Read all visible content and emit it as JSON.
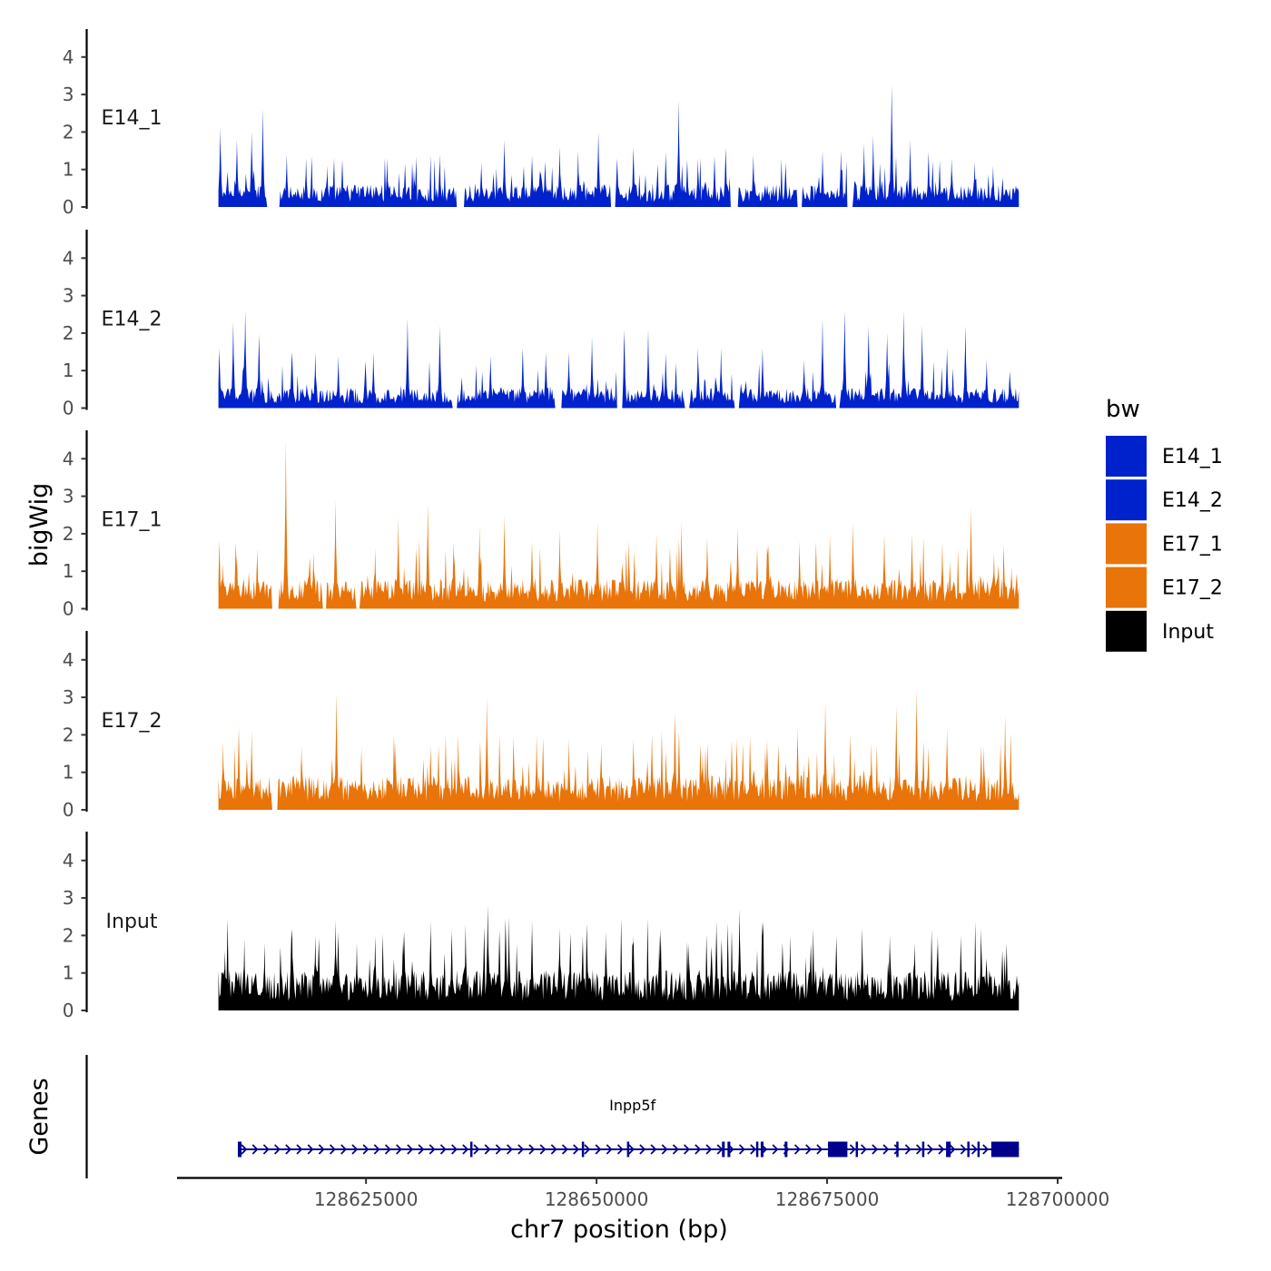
{
  "chart_data": {
    "type": "area",
    "title": "",
    "xlabel": "chr7 position (bp)",
    "ylabel": "bigWig",
    "genes_label": "Genes",
    "xlim": [
      128605000,
      128700000
    ],
    "ylim": [
      0,
      4.7
    ],
    "x_ticks": [
      128625000,
      128650000,
      128675000,
      128700000
    ],
    "x_tick_labels": [
      "128625000",
      "128650000",
      "128675000",
      "128700000"
    ],
    "y_ticks": [
      0,
      1,
      2,
      3,
      4
    ],
    "y_tick_labels": [
      "0",
      "1",
      "2",
      "3",
      "4"
    ],
    "legend": {
      "title": "bw",
      "position": "right",
      "entries": [
        {
          "label": "E14_1",
          "color": "#0022CC"
        },
        {
          "label": "E14_2",
          "color": "#0022CC"
        },
        {
          "label": "E17_1",
          "color": "#E8740A"
        },
        {
          "label": "E17_2",
          "color": "#E8740A"
        },
        {
          "label": "Input",
          "color": "#000000"
        }
      ]
    },
    "region": {
      "chrom": "chr7",
      "start": 128609000,
      "end": 128695800
    },
    "series": [
      {
        "name": "E14_1",
        "color": "#0022CC",
        "baseline_level": 0.55,
        "gaps": [
          [
            128614200,
            128615600
          ],
          [
            128634800,
            128635700
          ],
          [
            128651500,
            128652100
          ],
          [
            128664500,
            128665400
          ],
          [
            128671800,
            128672300
          ],
          [
            128677200,
            128677800
          ]
        ],
        "peaks": [
          {
            "x": 128609200,
            "y": 2.1
          },
          {
            "x": 128611000,
            "y": 1.8
          },
          {
            "x": 128612600,
            "y": 2.0
          },
          {
            "x": 128613800,
            "y": 2.6
          },
          {
            "x": 128616400,
            "y": 1.4
          },
          {
            "x": 128618500,
            "y": 1.3
          },
          {
            "x": 128620800,
            "y": 1.1
          },
          {
            "x": 128627300,
            "y": 1.3
          },
          {
            "x": 128630200,
            "y": 1.0
          },
          {
            "x": 128633000,
            "y": 1.4
          },
          {
            "x": 128637500,
            "y": 1.2
          },
          {
            "x": 128640000,
            "y": 1.8
          },
          {
            "x": 128643000,
            "y": 1.4
          },
          {
            "x": 128646000,
            "y": 1.6
          },
          {
            "x": 128648000,
            "y": 1.5
          },
          {
            "x": 128650200,
            "y": 2.0
          },
          {
            "x": 128654000,
            "y": 1.6
          },
          {
            "x": 128657500,
            "y": 1.5
          },
          {
            "x": 128658900,
            "y": 2.85
          },
          {
            "x": 128661000,
            "y": 1.3
          },
          {
            "x": 128664000,
            "y": 1.6
          },
          {
            "x": 128667000,
            "y": 1.4
          },
          {
            "x": 128670500,
            "y": 1.2
          },
          {
            "x": 128674500,
            "y": 1.5
          },
          {
            "x": 128676500,
            "y": 1.5
          },
          {
            "x": 128679000,
            "y": 1.7
          },
          {
            "x": 128680000,
            "y": 1.9
          },
          {
            "x": 128682000,
            "y": 3.25
          },
          {
            "x": 128684000,
            "y": 1.8
          },
          {
            "x": 128686000,
            "y": 1.5
          },
          {
            "x": 128688500,
            "y": 1.3
          },
          {
            "x": 128691000,
            "y": 1.2
          },
          {
            "x": 128693000,
            "y": 1.1
          }
        ]
      },
      {
        "name": "E14_2",
        "color": "#0022CC",
        "baseline_level": 0.5,
        "gaps": [
          [
            128634400,
            128634900
          ],
          [
            128645500,
            128646200
          ],
          [
            128652200,
            128652800
          ],
          [
            128659600,
            128660100
          ],
          [
            128664900,
            128665500
          ],
          [
            128675900,
            128676400
          ]
        ],
        "peaks": [
          {
            "x": 128609100,
            "y": 1.6
          },
          {
            "x": 128610600,
            "y": 2.3
          },
          {
            "x": 128611900,
            "y": 2.6
          },
          {
            "x": 128613400,
            "y": 2.0
          },
          {
            "x": 128617000,
            "y": 1.5
          },
          {
            "x": 128619500,
            "y": 1.5
          },
          {
            "x": 128622000,
            "y": 1.4
          },
          {
            "x": 128625800,
            "y": 1.5
          },
          {
            "x": 128629500,
            "y": 2.4
          },
          {
            "x": 128633000,
            "y": 2.2
          },
          {
            "x": 128638500,
            "y": 1.4
          },
          {
            "x": 128642000,
            "y": 1.6
          },
          {
            "x": 128644500,
            "y": 1.5
          },
          {
            "x": 128647000,
            "y": 1.5
          },
          {
            "x": 128649500,
            "y": 1.9
          },
          {
            "x": 128653000,
            "y": 2.1
          },
          {
            "x": 128655600,
            "y": 2.1
          },
          {
            "x": 128657500,
            "y": 1.5
          },
          {
            "x": 128661000,
            "y": 1.6
          },
          {
            "x": 128663500,
            "y": 1.6
          },
          {
            "x": 128668000,
            "y": 1.6
          },
          {
            "x": 128672500,
            "y": 1.3
          },
          {
            "x": 128674500,
            "y": 2.4
          },
          {
            "x": 128676900,
            "y": 2.6
          },
          {
            "x": 128679500,
            "y": 2.2
          },
          {
            "x": 128681500,
            "y": 2.0
          },
          {
            "x": 128683300,
            "y": 2.6
          },
          {
            "x": 128685300,
            "y": 2.2
          },
          {
            "x": 128688000,
            "y": 1.6
          },
          {
            "x": 128690000,
            "y": 2.2
          },
          {
            "x": 128692300,
            "y": 1.3
          },
          {
            "x": 128694800,
            "y": 1.0
          }
        ]
      },
      {
        "name": "E17_1",
        "color": "#E8740A",
        "baseline_level": 0.75,
        "gaps": [
          [
            128614800,
            128615500
          ],
          [
            128620300,
            128620700
          ],
          [
            128623900,
            128624300
          ]
        ],
        "peaks": [
          {
            "x": 128609500,
            "y": 1.2
          },
          {
            "x": 128611000,
            "y": 1.4
          },
          {
            "x": 128613200,
            "y": 1.6
          },
          {
            "x": 128616300,
            "y": 4.5
          },
          {
            "x": 128619300,
            "y": 1.5
          },
          {
            "x": 128621700,
            "y": 2.9
          },
          {
            "x": 128626000,
            "y": 1.6
          },
          {
            "x": 128628500,
            "y": 2.4
          },
          {
            "x": 128631700,
            "y": 2.8
          },
          {
            "x": 128634500,
            "y": 1.8
          },
          {
            "x": 128637300,
            "y": 2.2
          },
          {
            "x": 128640000,
            "y": 2.5
          },
          {
            "x": 128643000,
            "y": 1.8
          },
          {
            "x": 128646000,
            "y": 2.1
          },
          {
            "x": 128650100,
            "y": 2.3
          },
          {
            "x": 128653500,
            "y": 1.8
          },
          {
            "x": 128656500,
            "y": 2.0
          },
          {
            "x": 128659200,
            "y": 2.3
          },
          {
            "x": 128662000,
            "y": 1.9
          },
          {
            "x": 128665300,
            "y": 2.2
          },
          {
            "x": 128668500,
            "y": 1.7
          },
          {
            "x": 128672000,
            "y": 1.8
          },
          {
            "x": 128675300,
            "y": 2.0
          },
          {
            "x": 128677800,
            "y": 2.3
          },
          {
            "x": 128681200,
            "y": 2.0
          },
          {
            "x": 128684200,
            "y": 2.0
          },
          {
            "x": 128687500,
            "y": 1.8
          },
          {
            "x": 128690600,
            "y": 2.7
          },
          {
            "x": 128693100,
            "y": 1.5
          },
          {
            "x": 128695000,
            "y": 1.1
          }
        ]
      },
      {
        "name": "E17_2",
        "color": "#E8740A",
        "baseline_level": 0.85,
        "gaps": [
          [
            128614800,
            128615400
          ]
        ],
        "peaks": [
          {
            "x": 128609500,
            "y": 1.8
          },
          {
            "x": 128611200,
            "y": 2.2
          },
          {
            "x": 128612600,
            "y": 2.1
          },
          {
            "x": 128618000,
            "y": 1.7
          },
          {
            "x": 128621800,
            "y": 3.1
          },
          {
            "x": 128624500,
            "y": 1.7
          },
          {
            "x": 128628200,
            "y": 1.8
          },
          {
            "x": 128632000,
            "y": 1.7
          },
          {
            "x": 128635000,
            "y": 2.0
          },
          {
            "x": 128638100,
            "y": 3.0
          },
          {
            "x": 128641000,
            "y": 2.0
          },
          {
            "x": 128643500,
            "y": 2.0
          },
          {
            "x": 128647000,
            "y": 1.9
          },
          {
            "x": 128650500,
            "y": 1.8
          },
          {
            "x": 128654000,
            "y": 1.9
          },
          {
            "x": 128656000,
            "y": 2.0
          },
          {
            "x": 128658500,
            "y": 2.6
          },
          {
            "x": 128661500,
            "y": 1.5
          },
          {
            "x": 128665200,
            "y": 1.9
          },
          {
            "x": 128668500,
            "y": 1.9
          },
          {
            "x": 128671800,
            "y": 2.2
          },
          {
            "x": 128674800,
            "y": 2.9
          },
          {
            "x": 128677500,
            "y": 2.0
          },
          {
            "x": 128679800,
            "y": 1.8
          },
          {
            "x": 128682500,
            "y": 2.8
          },
          {
            "x": 128684700,
            "y": 3.2
          },
          {
            "x": 128688000,
            "y": 2.2
          },
          {
            "x": 128692000,
            "y": 1.7
          },
          {
            "x": 128694300,
            "y": 2.5
          }
        ]
      },
      {
        "name": "Input",
        "color": "#000000",
        "baseline_level": 1.0,
        "gaps": [],
        "peaks": [
          {
            "x": 128609700,
            "y": 1.6
          },
          {
            "x": 128611800,
            "y": 1.9
          },
          {
            "x": 128614000,
            "y": 1.8
          },
          {
            "x": 128617000,
            "y": 1.9
          },
          {
            "x": 128619500,
            "y": 2.0
          },
          {
            "x": 128621700,
            "y": 2.4
          },
          {
            "x": 128624000,
            "y": 1.8
          },
          {
            "x": 128626000,
            "y": 2.0
          },
          {
            "x": 128629000,
            "y": 1.8
          },
          {
            "x": 128632000,
            "y": 2.4
          },
          {
            "x": 128634300,
            "y": 2.2
          },
          {
            "x": 128635800,
            "y": 2.3
          },
          {
            "x": 128638200,
            "y": 2.8
          },
          {
            "x": 128640500,
            "y": 2.5
          },
          {
            "x": 128643000,
            "y": 2.4
          },
          {
            "x": 128646000,
            "y": 2.2
          },
          {
            "x": 128648500,
            "y": 2.0
          },
          {
            "x": 128651000,
            "y": 2.1
          },
          {
            "x": 128654000,
            "y": 2.0
          },
          {
            "x": 128656800,
            "y": 2.0
          },
          {
            "x": 128660000,
            "y": 1.8
          },
          {
            "x": 128663000,
            "y": 2.4
          },
          {
            "x": 128665500,
            "y": 2.7
          },
          {
            "x": 128668000,
            "y": 2.0
          },
          {
            "x": 128671000,
            "y": 2.0
          },
          {
            "x": 128673500,
            "y": 2.2
          },
          {
            "x": 128676000,
            "y": 2.0
          },
          {
            "x": 128678800,
            "y": 2.2
          },
          {
            "x": 128681800,
            "y": 2.0
          },
          {
            "x": 128684500,
            "y": 1.8
          },
          {
            "x": 128687000,
            "y": 2.0
          },
          {
            "x": 128689500,
            "y": 2.0
          },
          {
            "x": 128691700,
            "y": 2.2
          },
          {
            "x": 128694000,
            "y": 1.6
          }
        ]
      }
    ],
    "genes": [
      {
        "name": "Inpp5f",
        "color": "#00008B",
        "strand": "+",
        "start": 128611200,
        "end": 128695800,
        "exons": [
          {
            "start": 128611100,
            "end": 128611500
          },
          {
            "start": 128636300,
            "end": 128636400
          },
          {
            "start": 128648400,
            "end": 128648600
          },
          {
            "start": 128653300,
            "end": 128653500
          },
          {
            "start": 128663600,
            "end": 128663900
          },
          {
            "start": 128664200,
            "end": 128664500
          },
          {
            "start": 128667300,
            "end": 128667500
          },
          {
            "start": 128667800,
            "end": 128668100
          },
          {
            "start": 128670400,
            "end": 128670700
          },
          {
            "start": 128675100,
            "end": 128677200
          },
          {
            "start": 128678100,
            "end": 128678300
          },
          {
            "start": 128682500,
            "end": 128682700
          },
          {
            "start": 128685300,
            "end": 128685500
          },
          {
            "start": 128687900,
            "end": 128688400
          },
          {
            "start": 128690200,
            "end": 128690400
          },
          {
            "start": 128691300,
            "end": 128691500
          },
          {
            "start": 128692800,
            "end": 128695800
          }
        ]
      }
    ]
  }
}
